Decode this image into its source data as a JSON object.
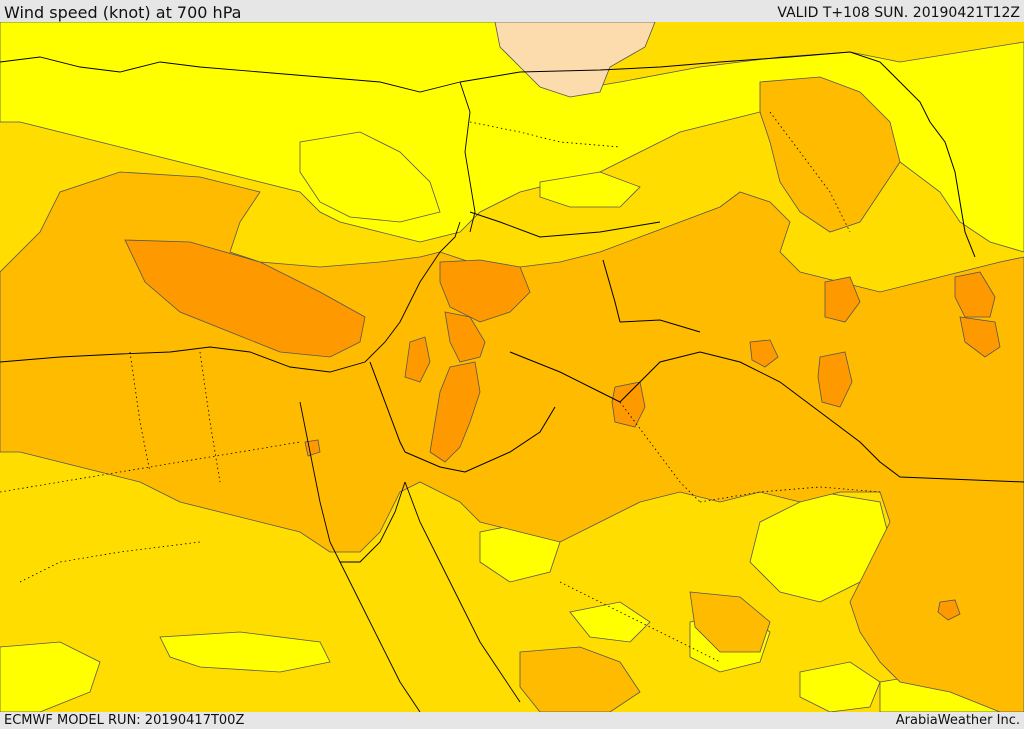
{
  "header": {
    "title": "Wind speed (knot) at 700 hPa",
    "valid": "VALID T+108 SUN. 20190421T12Z"
  },
  "footer": {
    "model_run": "ECMWF MODEL RUN: 20190417T00Z",
    "credit": "ArabiaWeather Inc."
  },
  "map": {
    "colors": {
      "very_light": "#fcdcac",
      "light": "#ffff00",
      "low": "#ffdd00",
      "medium": "#ffbb00",
      "high": "#ff9900",
      "contour": "#555555",
      "border": "#000000"
    }
  }
}
